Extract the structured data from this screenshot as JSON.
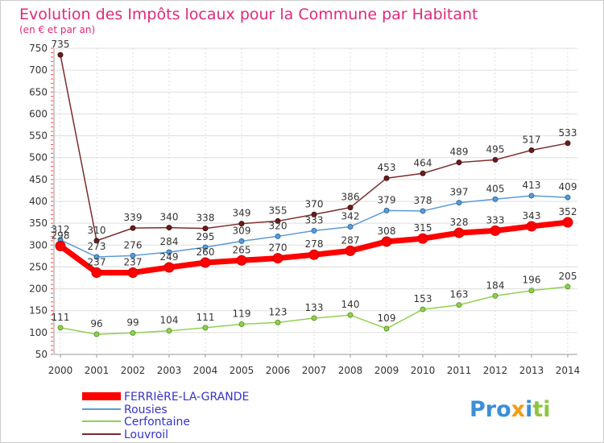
{
  "chart_data": {
    "type": "line",
    "title": "Evolution des Impôts locaux pour la Commune par Habitant",
    "subtitle": "(en € et par an)",
    "x": [
      "2000",
      "2001",
      "2002",
      "2003",
      "2004",
      "2005",
      "2006",
      "2007",
      "2008",
      "2009",
      "2010",
      "2011",
      "2012",
      "2013",
      "2014"
    ],
    "ylim": [
      50,
      750
    ],
    "yticks": [
      50,
      100,
      150,
      200,
      250,
      300,
      350,
      400,
      450,
      500,
      550,
      600,
      650,
      700,
      750
    ],
    "grid": true,
    "legend_position": "bottom-left",
    "series": [
      {
        "name": "FERRIèRE-LA-GRANDE",
        "color": "#ff0000",
        "values": [
          298,
          237,
          237,
          249,
          260,
          265,
          270,
          278,
          287,
          308,
          315,
          328,
          333,
          343,
          352
        ]
      },
      {
        "name": "Rousies",
        "color": "#5b9bd5",
        "values": [
          312,
          273,
          276,
          284,
          295,
          309,
          320,
          333,
          342,
          379,
          378,
          397,
          405,
          413,
          409
        ]
      },
      {
        "name": "Cerfontaine",
        "color": "#92d050",
        "values": [
          111,
          96,
          99,
          104,
          111,
          119,
          123,
          133,
          140,
          109,
          153,
          163,
          184,
          196,
          205
        ]
      },
      {
        "name": "Louvroil",
        "color": "#7b2c2c",
        "values": [
          735,
          310,
          339,
          340,
          338,
          349,
          355,
          370,
          386,
          453,
          464,
          489,
          495,
          517,
          533
        ]
      }
    ]
  },
  "logo": {
    "text": "Proxiti"
  },
  "colors": {
    "title": "#e0297a",
    "subtitle": "#e0297a",
    "legend_text": "#3333cc"
  }
}
